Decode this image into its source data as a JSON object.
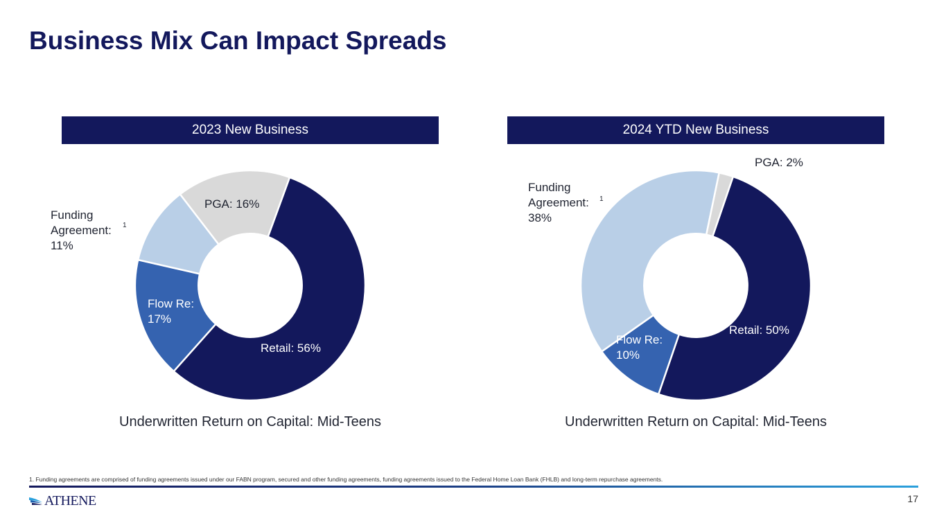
{
  "title": "Business Mix Can Impact Spreads",
  "colors": {
    "navy": "#13185c",
    "retail": "#13185c",
    "flow_re": "#3563b0",
    "funding": "#b9cfe7",
    "pga": "#d9d9d9"
  },
  "chart_data": [
    {
      "type": "pie",
      "title": "2023 New Business",
      "slices": [
        {
          "name": "Retail",
          "value": 56,
          "label_name": "Retail:",
          "label_value": "56%",
          "color": "#13185c",
          "text_color": "#ffffff"
        },
        {
          "name": "Flow Re",
          "value": 17,
          "label_name": "Flow Re:",
          "label_value": "17%",
          "color": "#3563b0",
          "text_color": "#ffffff"
        },
        {
          "name": "Funding Agreement",
          "value": 11,
          "label_name": "Funding Agreement:",
          "label_value": "11%",
          "superscript": "1",
          "color": "#b9cfe7",
          "text_color": "#1f2330"
        },
        {
          "name": "PGA",
          "value": 16,
          "label_name": "PGA:",
          "label_value": "16%",
          "color": "#d9d9d9",
          "text_color": "#1f2330"
        }
      ],
      "inner_radius_ratio": 0.45,
      "annotation": "Underwritten Return on Capital: Mid-Teens"
    },
    {
      "type": "pie",
      "title": "2024 YTD New Business",
      "slices": [
        {
          "name": "Retail",
          "value": 50,
          "label_name": "Retail:",
          "label_value": "50%",
          "color": "#13185c",
          "text_color": "#ffffff"
        },
        {
          "name": "Flow Re",
          "value": 10,
          "label_name": "Flow Re:",
          "label_value": "10%",
          "color": "#3563b0",
          "text_color": "#ffffff"
        },
        {
          "name": "Funding Agreement",
          "value": 38,
          "label_name": "Funding Agreement:",
          "label_value": "38%",
          "superscript": "1",
          "color": "#b9cfe7",
          "text_color": "#1f2330"
        },
        {
          "name": "PGA",
          "value": 2,
          "label_name": "PGA:",
          "label_value": "2%",
          "color": "#d9d9d9",
          "text_color": "#1f2330"
        }
      ],
      "inner_radius_ratio": 0.45,
      "annotation": "Underwritten Return on Capital: Mid-Teens"
    }
  ],
  "footnote": "1. Funding agreements are comprised of funding agreements issued under our FABN program, secured and other funding agreements, funding agreements issued to the Federal Home Loan Bank (FHLB) and long-term repurchase agreements.",
  "footer": {
    "logo_text": "ATHENE",
    "page_number": "17"
  }
}
